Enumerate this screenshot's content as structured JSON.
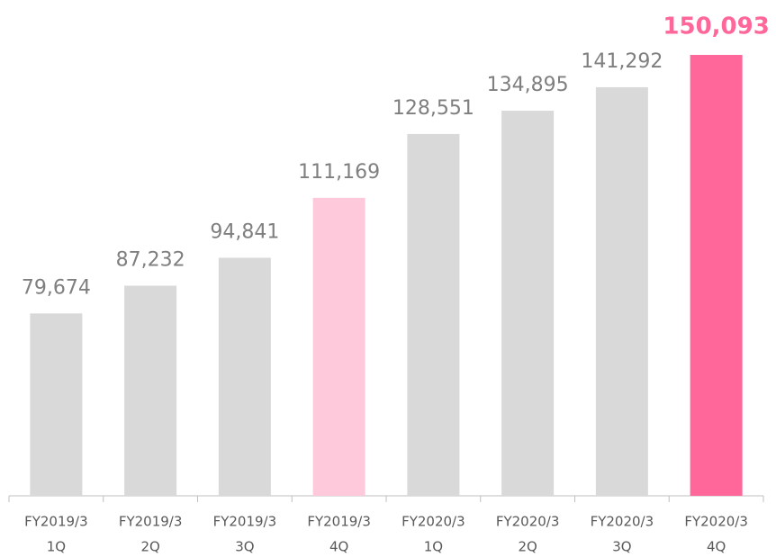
{
  "chart_data": {
    "type": "bar",
    "categories": [
      [
        "FY2019/3",
        "1Q"
      ],
      [
        "FY2019/3",
        "2Q"
      ],
      [
        "FY2019/3",
        "3Q"
      ],
      [
        "FY2019/3",
        "4Q"
      ],
      [
        "FY2020/3",
        "1Q"
      ],
      [
        "FY2020/3",
        "2Q"
      ],
      [
        "FY2020/3",
        "3Q"
      ],
      [
        "FY2020/3",
        "4Q"
      ]
    ],
    "values": [
      79674,
      87232,
      94841,
      111169,
      128551,
      134895,
      141292,
      150093
    ],
    "value_labels": [
      "79,674",
      "87,232",
      "94,841",
      "111,169",
      "128,551",
      "134,895",
      "141,292",
      "150,093"
    ],
    "colors": [
      "#d9d9d9",
      "#d9d9d9",
      "#d9d9d9",
      "#ffc9dc",
      "#d9d9d9",
      "#d9d9d9",
      "#d9d9d9",
      "#ff6699"
    ],
    "label_colors": [
      "#7f7f7f",
      "#7f7f7f",
      "#7f7f7f",
      "#7f7f7f",
      "#7f7f7f",
      "#7f7f7f",
      "#7f7f7f",
      "#ff6699"
    ],
    "ylim": [
      30000,
      150000
    ]
  }
}
